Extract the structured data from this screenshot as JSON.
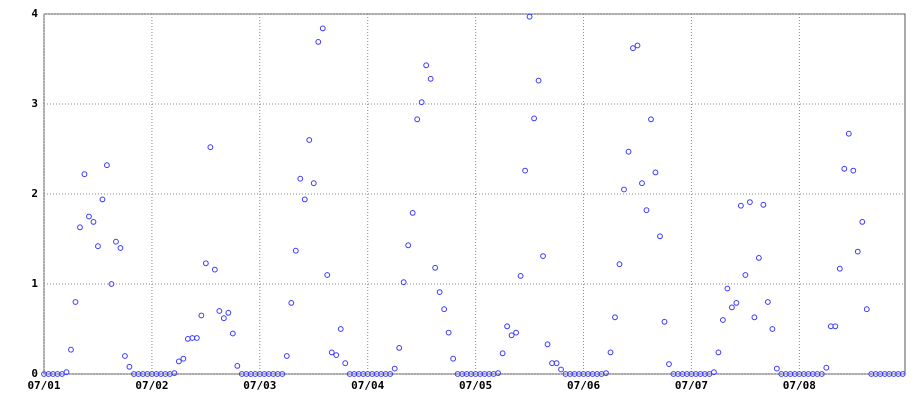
{
  "chart_data": {
    "type": "scatter",
    "x": [
      0,
      1,
      2,
      3,
      4,
      5,
      6,
      7,
      8,
      9,
      10,
      11,
      12,
      13,
      14,
      15,
      16,
      17,
      18,
      19,
      20,
      21,
      22,
      23,
      24,
      25,
      26,
      27,
      28,
      29,
      30,
      31,
      32,
      33,
      34,
      35,
      36,
      37,
      38,
      39,
      40,
      41,
      42,
      43,
      44,
      45,
      46,
      47,
      48,
      49,
      50,
      51,
      52,
      53,
      54,
      55,
      56,
      57,
      58,
      59,
      60,
      61,
      62,
      63,
      64,
      65,
      66,
      67,
      68,
      69,
      70,
      71,
      72,
      73,
      74,
      75,
      76,
      77,
      78,
      79,
      80,
      81,
      82,
      83,
      84,
      85,
      86,
      87,
      88,
      89,
      90,
      91,
      92,
      93,
      94,
      95,
      96,
      97,
      98,
      99,
      100,
      101,
      102,
      103,
      104,
      105,
      106,
      107,
      108,
      109,
      110,
      111,
      112,
      113,
      114,
      115,
      116,
      117,
      118,
      119,
      120,
      121,
      122,
      123,
      124,
      125,
      126,
      127,
      128,
      129,
      130,
      131,
      132,
      133,
      134,
      135,
      136,
      137,
      138,
      139,
      140,
      141,
      142,
      143,
      144,
      145,
      146,
      147,
      148,
      149,
      150,
      151,
      152,
      153,
      154,
      155,
      156,
      157,
      158,
      159,
      160,
      161,
      162,
      163,
      164,
      165,
      166,
      167,
      168,
      169,
      170,
      171,
      172,
      173,
      174,
      175,
      176,
      177,
      178,
      179,
      180,
      181,
      182,
      183,
      184,
      185,
      186,
      187,
      188,
      189,
      190,
      191
    ],
    "values": [
      0,
      0,
      0,
      0,
      0,
      0.02,
      0.27,
      0.8,
      1.63,
      2.22,
      1.75,
      1.69,
      1.42,
      1.94,
      2.32,
      1.0,
      1.47,
      1.4,
      0.2,
      0.08,
      0,
      0,
      0,
      0,
      0,
      0,
      0,
      0,
      0,
      0.01,
      0.14,
      0.17,
      0.39,
      0.4,
      0.4,
      0.65,
      1.23,
      2.52,
      1.16,
      0.7,
      0.62,
      0.68,
      0.45,
      0.09,
      0,
      0,
      0,
      0,
      0,
      0,
      0,
      0,
      0,
      0,
      0.2,
      0.79,
      1.37,
      2.17,
      1.94,
      2.6,
      2.12,
      3.69,
      3.84,
      1.1,
      0.24,
      0.21,
      0.5,
      0.12,
      0,
      0,
      0,
      0,
      0,
      0,
      0,
      0,
      0,
      0,
      0.06,
      0.29,
      1.02,
      1.43,
      1.79,
      2.83,
      3.02,
      3.43,
      3.28,
      1.18,
      0.91,
      0.72,
      0.46,
      0.17,
      0,
      0,
      0,
      0,
      0,
      0,
      0,
      0,
      0,
      0.01,
      0.23,
      0.53,
      0.43,
      0.46,
      1.09,
      2.26,
      3.97,
      2.84,
      3.26,
      1.31,
      0.33,
      0.12,
      0.12,
      0.05,
      0,
      0,
      0,
      0,
      0,
      0,
      0,
      0,
      0,
      0.01,
      0.24,
      0.63,
      1.22,
      2.05,
      2.47,
      3.62,
      3.65,
      2.12,
      1.82,
      2.83,
      2.24,
      1.53,
      0.58,
      0.11,
      0,
      0,
      0,
      0,
      0,
      0,
      0,
      0,
      0,
      0.02,
      0.24,
      0.6,
      0.95,
      0.74,
      0.79,
      1.87,
      1.1,
      1.91,
      0.63,
      1.29,
      1.88,
      0.8,
      0.5,
      0.06,
      0,
      0,
      0,
      0,
      0,
      0,
      0,
      0,
      0,
      0,
      0.07,
      0.53,
      0.53,
      1.17,
      2.28,
      2.67,
      2.26,
      1.36,
      1.69,
      0.72,
      0,
      0,
      0,
      0,
      0,
      0,
      0,
      0
    ],
    "color": "#3a3aff",
    "xlim": [
      0,
      191.5
    ],
    "xticks": [
      {
        "value": 0,
        "label": "07/01"
      },
      {
        "value": 24,
        "label": "07/02"
      },
      {
        "value": 48,
        "label": "07/03"
      },
      {
        "value": 72,
        "label": "07/04"
      },
      {
        "value": 96,
        "label": "07/05"
      },
      {
        "value": 120,
        "label": "07/06"
      },
      {
        "value": 144,
        "label": "07/07"
      },
      {
        "value": 168,
        "label": "07/08"
      }
    ],
    "ylim": [
      0,
      4
    ],
    "yticks": [
      0,
      1,
      2,
      3,
      4
    ],
    "grid": true
  }
}
